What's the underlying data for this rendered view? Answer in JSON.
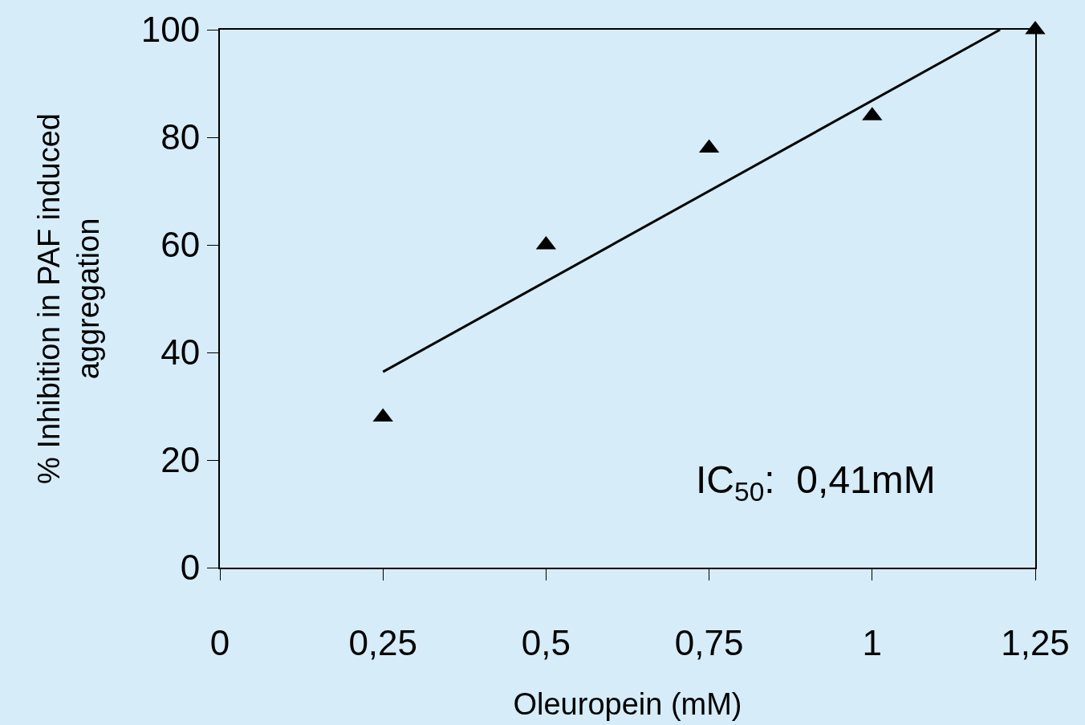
{
  "chart_data": {
    "type": "scatter",
    "xlabel": "Oleuropein (mM)",
    "ylabel": "% Inhibition in PAF induced aggregation",
    "x": [
      0.25,
      0.5,
      0.75,
      1,
      1.25
    ],
    "series": [
      {
        "color": "#000000",
        "marker": "triangle",
        "values": [
          28,
          60,
          78,
          84,
          100
        ]
      },
      {
        "type": "line",
        "color": "#000000",
        "marker": "none",
        "line_style": "solid",
        "x": [
          0.25,
          1.196
        ],
        "values": [
          36.4,
          100
        ]
      }
    ],
    "xlim": [
      0,
      1.25
    ],
    "ylim": [
      0,
      100
    ],
    "xticks": [
      0,
      {
        "value": 0.25,
        "label": "0,25"
      },
      {
        "value": 0.5,
        "label": "0,5"
      },
      {
        "value": 0.75,
        "label": "0,75"
      },
      1,
      {
        "value": 1.25,
        "label": "1,25"
      }
    ],
    "yticks": [
      0,
      20,
      40,
      60,
      80,
      100
    ],
    "annotations": [
      "IC$_{50}$:  0,41mM"
    ],
    "grid": false,
    "legend": false
  }
}
